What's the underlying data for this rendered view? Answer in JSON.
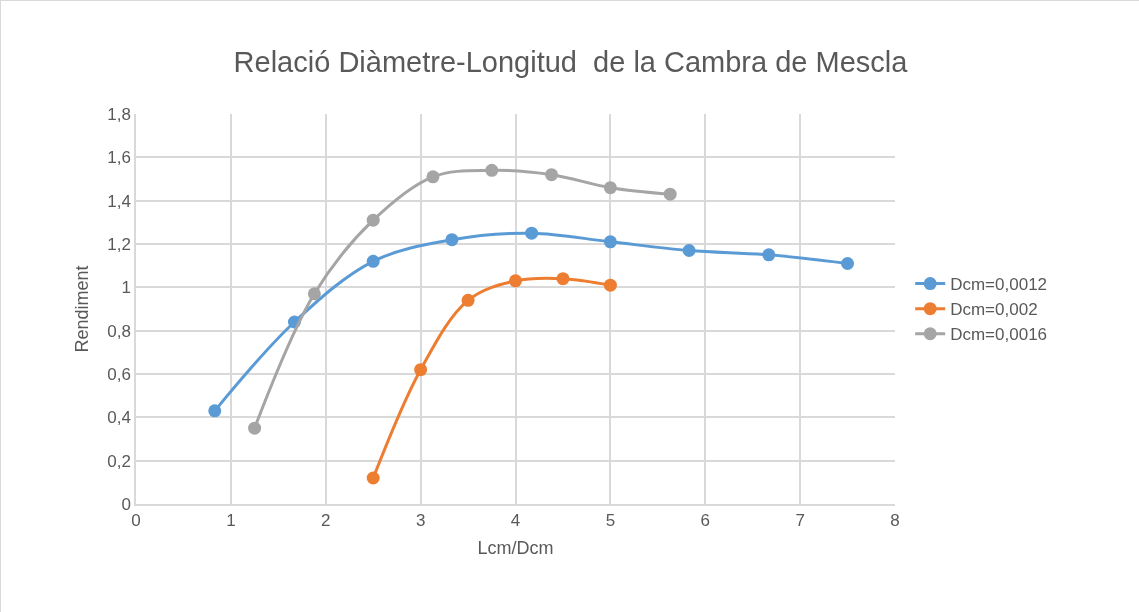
{
  "chart_data": {
    "type": "line",
    "title": "Relació Diàmetre-Longitud  de la Cambra de Mescla",
    "xlabel": "Lcm/Dcm",
    "ylabel": "Rendiment",
    "xlim": [
      0,
      8
    ],
    "xticks": [
      0,
      1,
      2,
      3,
      4,
      5,
      6,
      7,
      8
    ],
    "ylim": [
      0,
      1.8
    ],
    "yticks": [
      {
        "value": 0,
        "label": "0"
      },
      {
        "value": 0.2,
        "label": "0,2"
      },
      {
        "value": 0.4,
        "label": "0,4"
      },
      {
        "value": 0.6,
        "label": "0,6"
      },
      {
        "value": 0.8,
        "label": "0,8"
      },
      {
        "value": 1,
        "label": "1"
      },
      {
        "value": 1.2,
        "label": "1,2"
      },
      {
        "value": 1.4,
        "label": "1,4"
      },
      {
        "value": 1.6,
        "label": "1,6"
      },
      {
        "value": 1.8,
        "label": "1,8"
      }
    ],
    "grid": true,
    "legend": "right",
    "marker": "circle",
    "line_style": "solid",
    "series": [
      {
        "name": "Dcm=0,0012",
        "color": "#5b9bd5",
        "x": [
          0.83,
          1.67,
          2.5,
          3.33,
          4.17,
          5,
          5.83,
          6.67,
          7.5
        ],
        "values": [
          0.43,
          0.84,
          1.12,
          1.22,
          1.25,
          1.21,
          1.17,
          1.15,
          1.11
        ]
      },
      {
        "name": "Dcm=0,002",
        "color": "#ed7d31",
        "x": [
          2.5,
          3,
          3.5,
          4,
          4.5,
          5
        ],
        "values": [
          0.12,
          0.62,
          0.94,
          1.03,
          1.04,
          1.01
        ]
      },
      {
        "name": "Dcm=0,0016",
        "color": "#a5a5a5",
        "x": [
          1.25,
          1.88,
          2.5,
          3.13,
          3.75,
          4.38,
          5,
          5.63
        ],
        "values": [
          0.35,
          0.97,
          1.31,
          1.51,
          1.54,
          1.52,
          1.46,
          1.43
        ]
      }
    ]
  }
}
